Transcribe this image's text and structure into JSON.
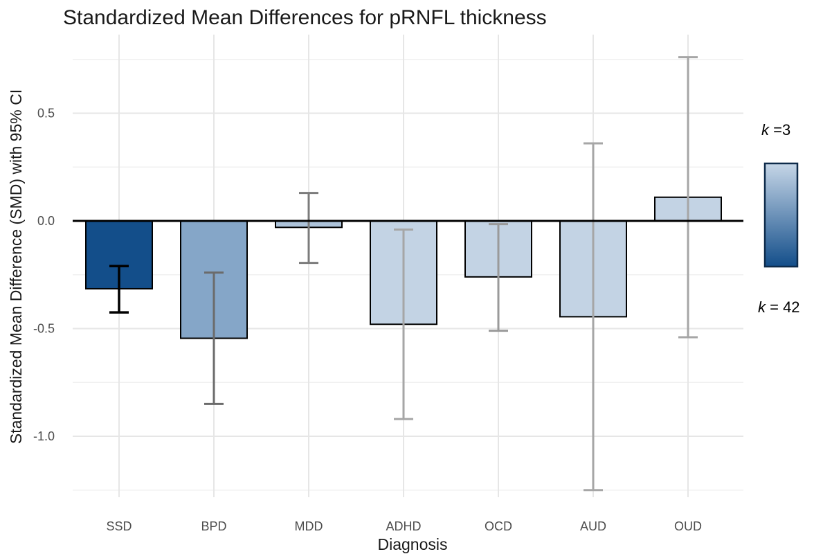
{
  "chart_data": {
    "type": "bar",
    "title": "Standardized Mean Differences for pRNFL thickness",
    "xlabel": "Diagnosis",
    "ylabel": "Standardized Mean Difference (SMD) with 95% CI",
    "ylim": [
      -1.25,
      0.76
    ],
    "yticks": [
      0.5,
      0.0,
      -0.5,
      -1.0
    ],
    "ytick_labels": [
      "0.5",
      "0.0",
      "-0.5",
      "-1.0"
    ],
    "grid": true,
    "categories": [
      "SSD",
      "BPD",
      "MDD",
      "ADHD",
      "OCD",
      "AUD",
      "OUD"
    ],
    "values": [
      -0.315,
      -0.545,
      -0.03,
      -0.48,
      -0.26,
      -0.445,
      0.11
    ],
    "ci_lower": [
      -0.425,
      -0.85,
      -0.195,
      -0.92,
      -0.51,
      -1.25,
      -0.54
    ],
    "ci_upper": [
      -0.21,
      -0.24,
      0.13,
      -0.04,
      -0.015,
      0.36,
      0.76
    ],
    "fill_colors": [
      "#134e8a",
      "#85a6c8",
      "#adc3da",
      "#c3d3e4",
      "#c3d3e4",
      "#c3d3e4",
      "#c3d3e4"
    ],
    "errorbar_colors": [
      "#000000",
      "#6b6b6b",
      "#7c7c7c",
      "#a6a6a6",
      "#9a9a9a",
      "#a6a6a6",
      "#a6a6a6"
    ],
    "legend": {
      "placement": "right",
      "top_k_symbol": "k",
      "top_k_value": " =3",
      "bottom_k_symbol": "k",
      "bottom_k_value": " = 42",
      "gradient_top_color": "#c6d6e7",
      "gradient_bottom_color": "#134e8a"
    }
  }
}
